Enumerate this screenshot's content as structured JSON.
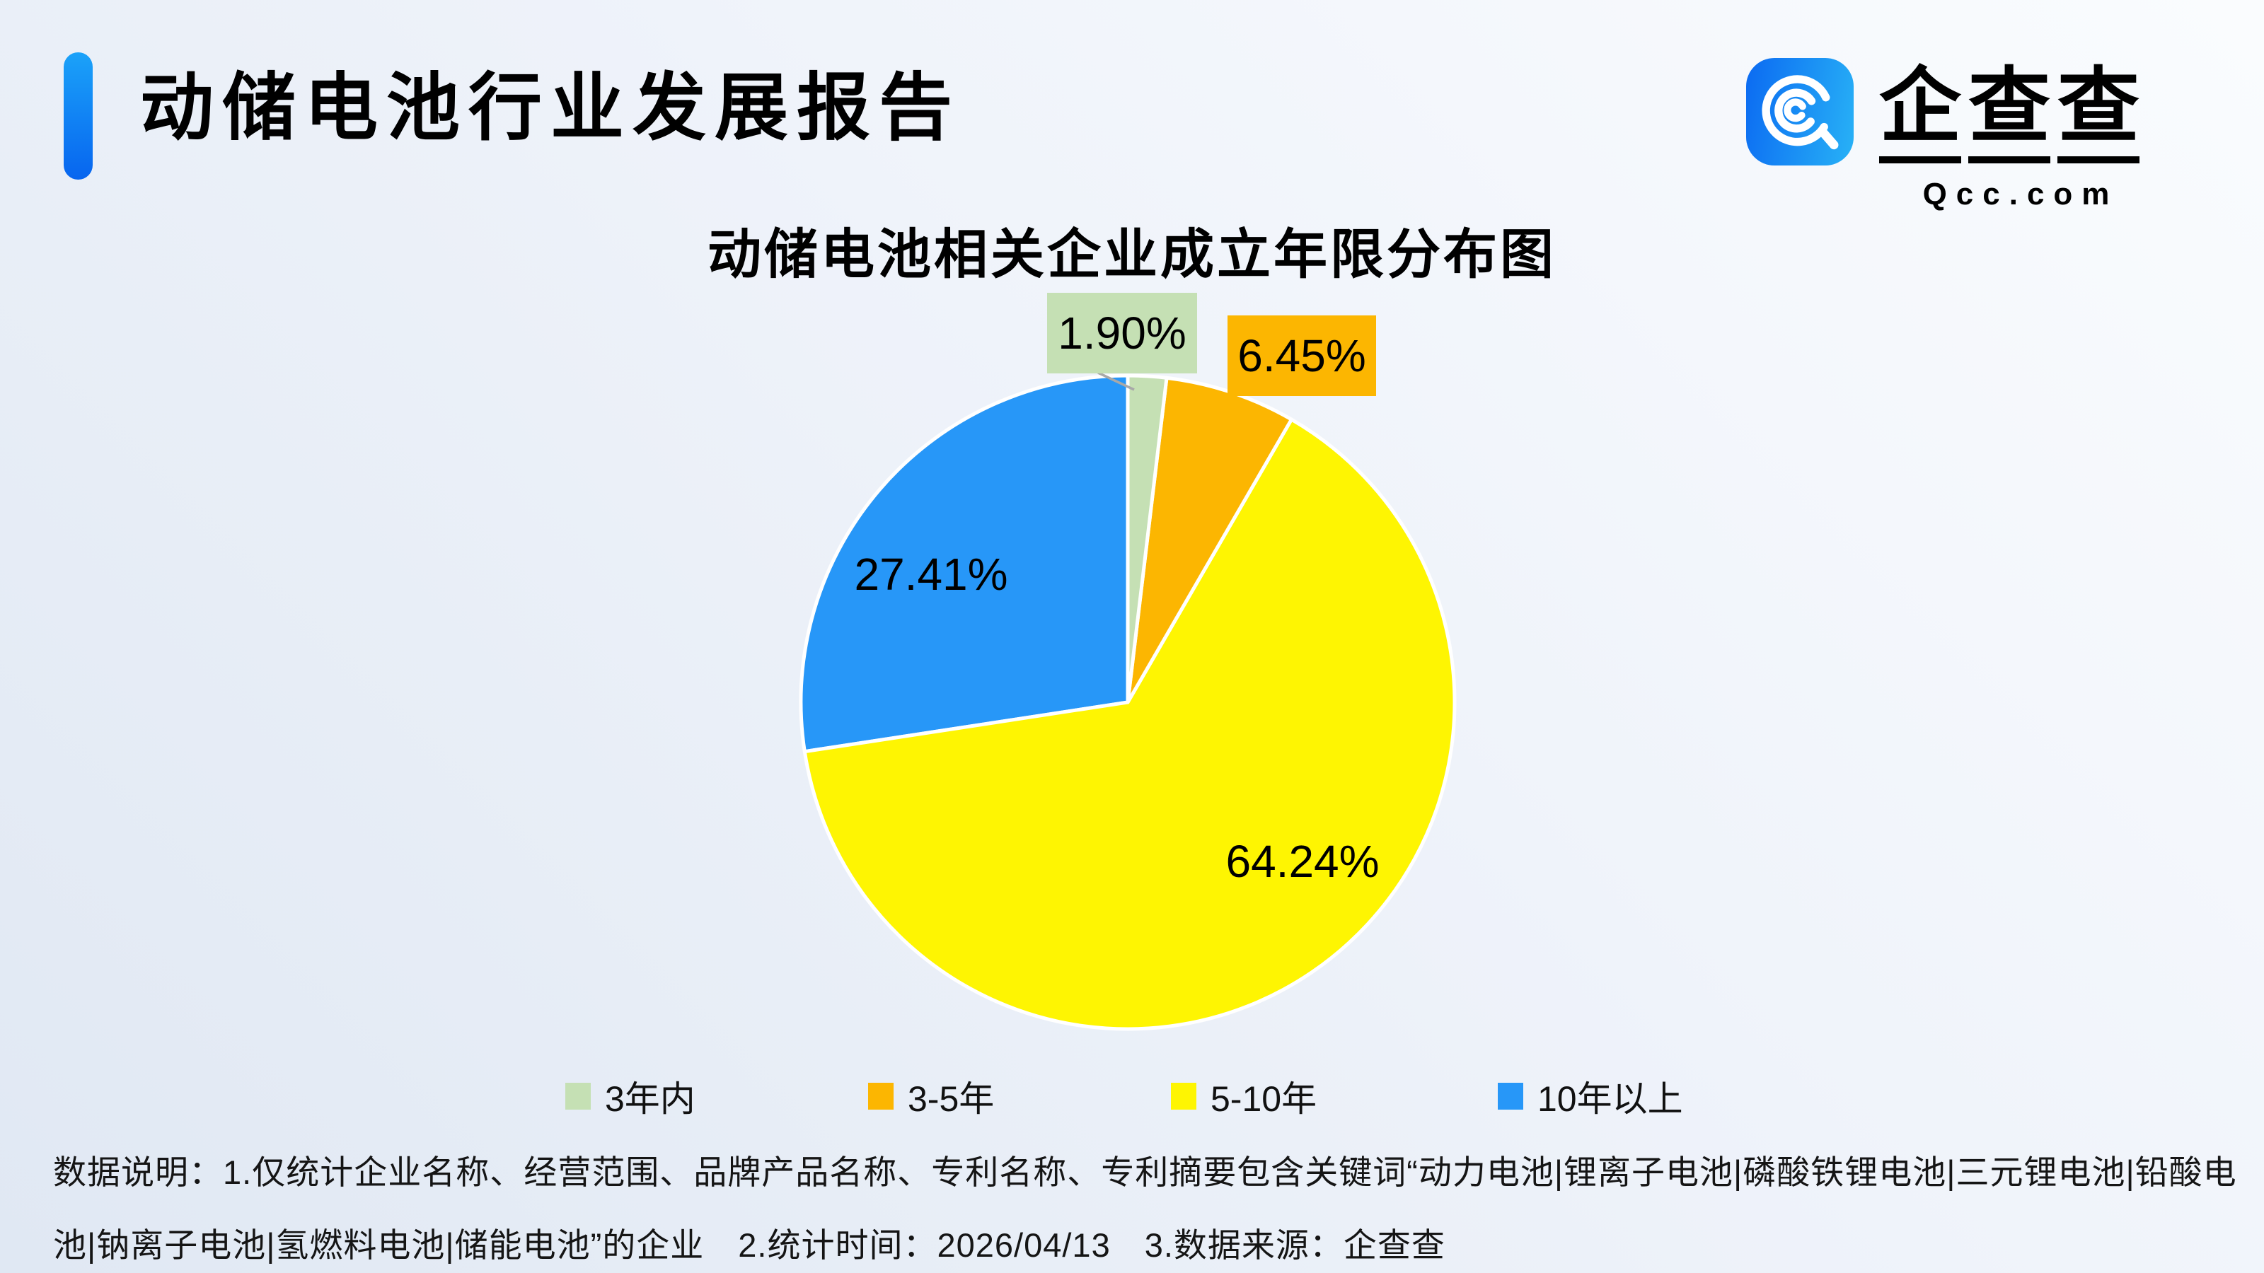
{
  "header": {
    "title": "动储电池行业发展报告",
    "brand": {
      "chars": [
        "企",
        "查",
        "查"
      ],
      "domain": "Qcc.com",
      "logo_icon": "qcc-magnifier-q-icon"
    }
  },
  "chart_data": {
    "type": "pie",
    "title": "动储电池相关企业成立年限分布图",
    "categories": [
      "3年内",
      "3-5年",
      "5-10年",
      "10年以上"
    ],
    "values": [
      1.9,
      6.45,
      64.24,
      27.41
    ],
    "labels": [
      "1.90%",
      "6.45%",
      "64.24%",
      "27.41%"
    ],
    "colors": [
      "#C5E0B4",
      "#FCB601",
      "#FEF502",
      "#2797F8"
    ],
    "unit": "%",
    "start_angle_deg": 0,
    "direction": "clockwise",
    "legend_position": "bottom",
    "label_style": {
      "callout_indices": [
        0,
        1
      ],
      "inside_indices": [
        2,
        3
      ]
    }
  },
  "footer": {
    "lines": [
      "数据说明：1.仅统计企业名称、经营范围、品牌产品名称、专利名称、专利摘要包含关键词“动力电池|锂离子电池|磷酸铁锂电池|三元锂电池|铅酸电",
      "池|钠离子电池|氢燃料电池|储能电池”的企业　2.统计时间：2026/04/13　3.数据来源：企查查"
    ]
  },
  "theme": {
    "accent_blue": "#0E7BF3",
    "background_top_right": "#FAFCFE",
    "background_bottom_left": "#E0E8F3",
    "leader_line": "#A8A8A8",
    "text": "#000000"
  }
}
